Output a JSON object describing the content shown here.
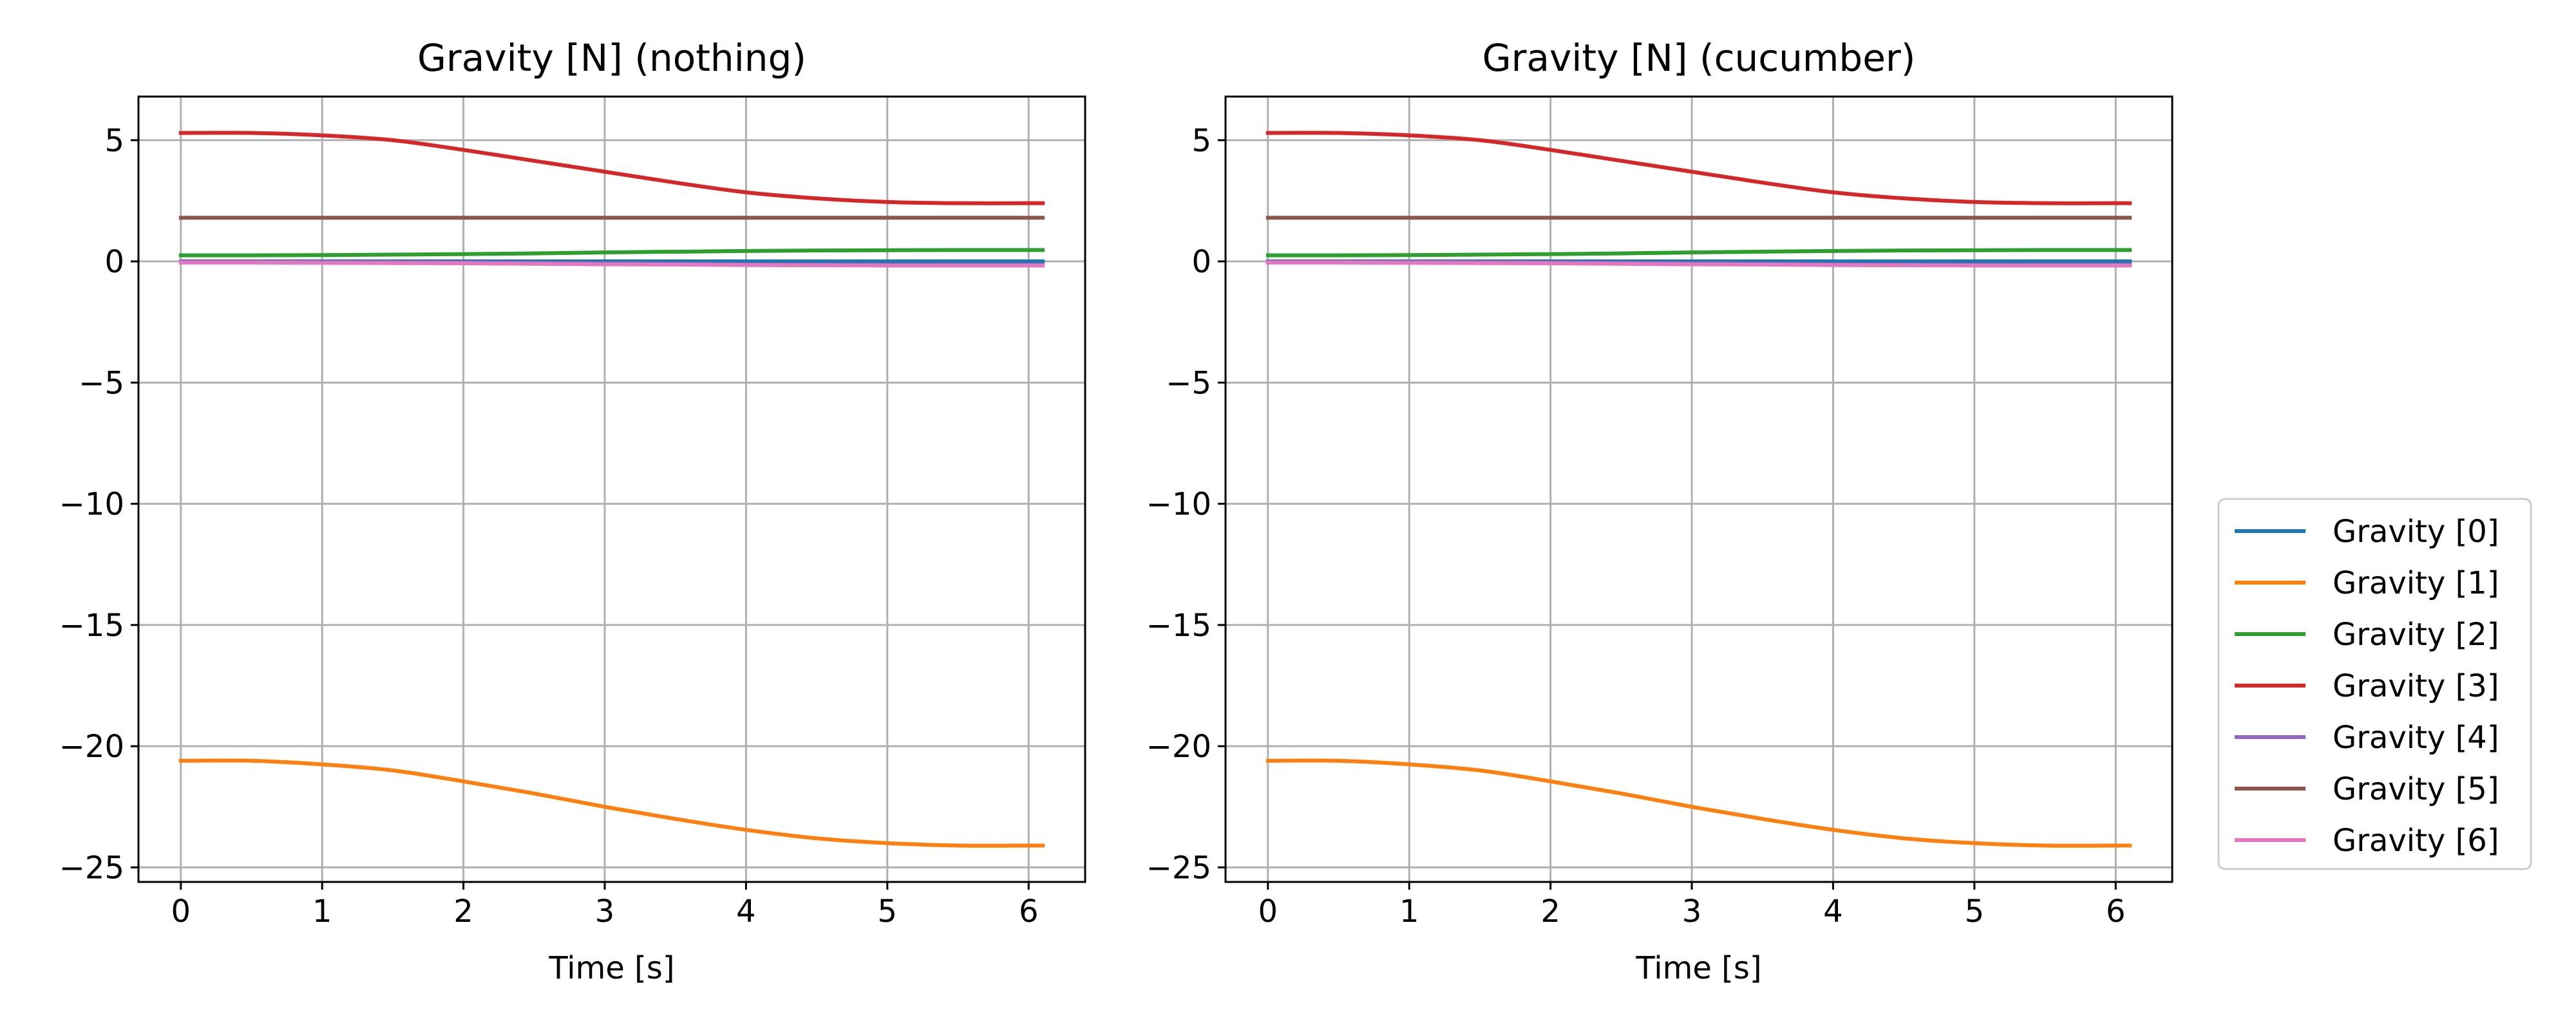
{
  "legend": {
    "placement": "right, vertically centered",
    "entries": [
      "Gravity [0]",
      "Gravity [1]",
      "Gravity [2]",
      "Gravity [3]",
      "Gravity [4]",
      "Gravity [5]",
      "Gravity [6]"
    ]
  },
  "colors": {
    "Gravity [0]": "#1f77b4",
    "Gravity [1]": "#ff7f0e",
    "Gravity [2]": "#2ca02c",
    "Gravity [3]": "#d62728",
    "Gravity [4]": "#9467bd",
    "Gravity [5]": "#8c564b",
    "Gravity [6]": "#e377c2",
    "grid": "#b0b0b0"
  },
  "chart_data": [
    {
      "type": "line",
      "title": "Gravity [N] (nothing)",
      "xlabel": "Time [s]",
      "ylabel": "",
      "xlim": [
        -0.3,
        6.4
      ],
      "ylim": [
        -25.6,
        6.8
      ],
      "xticks": [
        0,
        1,
        2,
        3,
        4,
        5,
        6
      ],
      "xtick_labels": [
        "0",
        "1",
        "2",
        "3",
        "4",
        "5",
        "6"
      ],
      "yticks": [
        5,
        0,
        -5,
        -10,
        -15,
        -20,
        -25
      ],
      "ytick_labels": [
        "5",
        "0",
        "−5",
        "−10",
        "−15",
        "−20",
        "−25"
      ],
      "grid": true,
      "x": [
        0,
        0.5,
        1,
        1.5,
        2,
        2.5,
        3,
        3.5,
        4,
        4.5,
        5,
        5.5,
        6,
        6.1
      ],
      "series": [
        {
          "name": "Gravity [0]",
          "values": [
            0,
            0,
            0,
            0,
            0,
            0,
            0,
            0,
            0,
            0,
            0,
            0,
            0,
            0
          ]
        },
        {
          "name": "Gravity [1]",
          "values": [
            -20.6,
            -20.6,
            -20.75,
            -21.0,
            -21.45,
            -21.95,
            -22.5,
            -23.0,
            -23.45,
            -23.8,
            -24.0,
            -24.1,
            -24.1,
            -24.1
          ]
        },
        {
          "name": "Gravity [2]",
          "values": [
            0.25,
            0.25,
            0.26,
            0.28,
            0.3,
            0.33,
            0.37,
            0.4,
            0.43,
            0.45,
            0.46,
            0.47,
            0.47,
            0.47
          ]
        },
        {
          "name": "Gravity [3]",
          "values": [
            5.3,
            5.3,
            5.2,
            5.0,
            4.6,
            4.15,
            3.7,
            3.25,
            2.85,
            2.6,
            2.45,
            2.4,
            2.4,
            2.4
          ]
        },
        {
          "name": "Gravity [4]",
          "values": [
            -0.02,
            -0.02,
            -0.03,
            -0.04,
            -0.05,
            -0.07,
            -0.09,
            -0.11,
            -0.13,
            -0.14,
            -0.15,
            -0.15,
            -0.15,
            -0.15
          ]
        },
        {
          "name": "Gravity [5]",
          "values": [
            1.8,
            1.8,
            1.8,
            1.8,
            1.8,
            1.8,
            1.8,
            1.8,
            1.8,
            1.8,
            1.8,
            1.8,
            1.8,
            1.8
          ]
        },
        {
          "name": "Gravity [6]",
          "values": [
            -0.05,
            -0.05,
            -0.06,
            -0.07,
            -0.08,
            -0.1,
            -0.12,
            -0.13,
            -0.15,
            -0.16,
            -0.17,
            -0.17,
            -0.17,
            -0.17
          ]
        }
      ]
    },
    {
      "type": "line",
      "title": "Gravity [N] (cucumber)",
      "xlabel": "Time [s]",
      "ylabel": "",
      "xlim": [
        -0.3,
        6.4
      ],
      "ylim": [
        -25.6,
        6.8
      ],
      "xticks": [
        0,
        1,
        2,
        3,
        4,
        5,
        6
      ],
      "xtick_labels": [
        "0",
        "1",
        "2",
        "3",
        "4",
        "5",
        "6"
      ],
      "yticks": [
        5,
        0,
        -5,
        -10,
        -15,
        -20,
        -25
      ],
      "ytick_labels": [
        "5",
        "0",
        "−5",
        "−10",
        "−15",
        "−20",
        "−25"
      ],
      "grid": true,
      "x": [
        0,
        0.5,
        1,
        1.5,
        2,
        2.5,
        3,
        3.5,
        4,
        4.5,
        5,
        5.5,
        6,
        6.1
      ],
      "series": [
        {
          "name": "Gravity [0]",
          "values": [
            0,
            0,
            0,
            0,
            0,
            0,
            0,
            0,
            0,
            0,
            0,
            0,
            0,
            0
          ]
        },
        {
          "name": "Gravity [1]",
          "values": [
            -20.6,
            -20.6,
            -20.75,
            -21.0,
            -21.45,
            -21.95,
            -22.5,
            -23.0,
            -23.45,
            -23.8,
            -24.0,
            -24.1,
            -24.1,
            -24.1
          ]
        },
        {
          "name": "Gravity [2]",
          "values": [
            0.25,
            0.25,
            0.26,
            0.28,
            0.3,
            0.33,
            0.37,
            0.4,
            0.43,
            0.45,
            0.46,
            0.47,
            0.47,
            0.47
          ]
        },
        {
          "name": "Gravity [3]",
          "values": [
            5.3,
            5.3,
            5.2,
            5.0,
            4.6,
            4.15,
            3.7,
            3.25,
            2.85,
            2.6,
            2.45,
            2.4,
            2.4,
            2.4
          ]
        },
        {
          "name": "Gravity [4]",
          "values": [
            -0.02,
            -0.02,
            -0.03,
            -0.04,
            -0.05,
            -0.07,
            -0.09,
            -0.11,
            -0.13,
            -0.14,
            -0.15,
            -0.15,
            -0.15,
            -0.15
          ]
        },
        {
          "name": "Gravity [5]",
          "values": [
            1.8,
            1.8,
            1.8,
            1.8,
            1.8,
            1.8,
            1.8,
            1.8,
            1.8,
            1.8,
            1.8,
            1.8,
            1.8,
            1.8
          ]
        },
        {
          "name": "Gravity [6]",
          "values": [
            -0.05,
            -0.05,
            -0.06,
            -0.07,
            -0.08,
            -0.1,
            -0.12,
            -0.13,
            -0.15,
            -0.16,
            -0.17,
            -0.17,
            -0.17,
            -0.17
          ]
        }
      ]
    }
  ]
}
